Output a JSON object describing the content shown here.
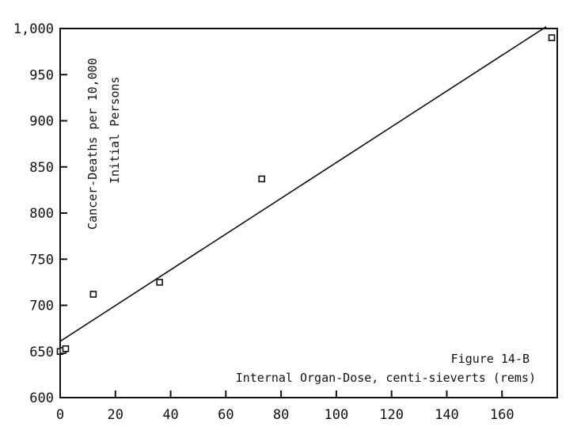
{
  "chart_data": {
    "type": "scatter",
    "title": "",
    "figure_label": "Figure 14-B",
    "xlabel": "Internal Organ-Dose, centi-sieverts (rems)",
    "ylabel_line1": "Cancer-Deaths per 10,000",
    "ylabel_line2": "Initial Persons",
    "xlim": [
      0,
      180
    ],
    "ylim": [
      600,
      1000
    ],
    "x_ticks": [
      0,
      20,
      40,
      60,
      80,
      100,
      120,
      140,
      160
    ],
    "y_ticks": [
      600,
      650,
      700,
      750,
      800,
      850,
      900,
      950,
      1000
    ],
    "y_tick_labels": [
      "600",
      "650",
      "700",
      "750",
      "800",
      "850",
      "900",
      "950",
      "1,000"
    ],
    "grid": false,
    "series": [
      {
        "points": [
          {
            "x": 0,
            "y": 650
          },
          {
            "x": 1,
            "y": 651
          },
          {
            "x": 2,
            "y": 653
          },
          {
            "x": 12,
            "y": 712
          },
          {
            "x": 36,
            "y": 725
          },
          {
            "x": 73,
            "y": 837
          },
          {
            "x": 178,
            "y": 990
          }
        ]
      }
    ],
    "fit_line": {
      "x": [
        0,
        176
      ],
      "y": [
        661,
        1002
      ]
    }
  }
}
